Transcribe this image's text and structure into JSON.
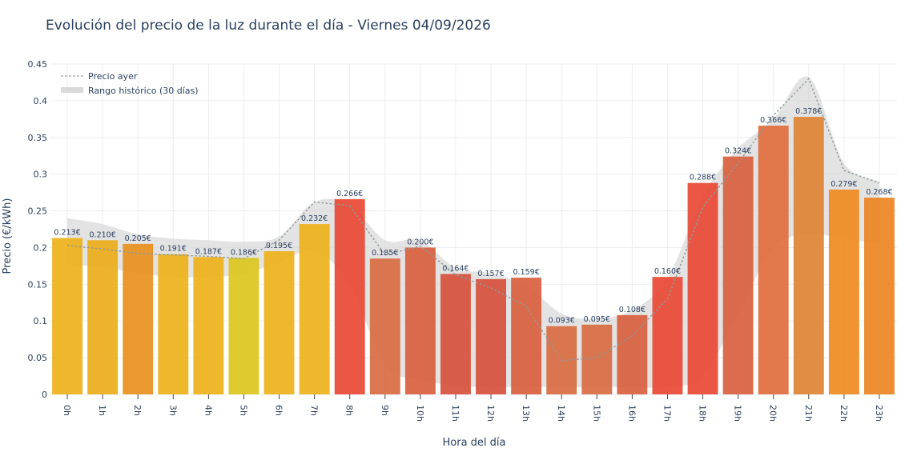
{
  "chart_data": {
    "type": "bar",
    "title": "Evolución del precio de la luz durante el día - Viernes 04/09/2026",
    "xlabel": "Hora del día",
    "ylabel": "Precio (€/kWh)",
    "ylim": [
      0,
      0.45
    ],
    "yticks": [
      "0",
      "0.05",
      "0.1",
      "0.15",
      "0.2",
      "0.25",
      "0.3",
      "0.35",
      "0.4",
      "0.45"
    ],
    "categories": [
      "0h",
      "1h",
      "2h",
      "3h",
      "4h",
      "5h",
      "6h",
      "7h",
      "8h",
      "9h",
      "10h",
      "11h",
      "12h",
      "13h",
      "14h",
      "15h",
      "16h",
      "17h",
      "18h",
      "19h",
      "20h",
      "21h",
      "22h",
      "23h"
    ],
    "values": [
      0.213,
      0.21,
      0.205,
      0.191,
      0.187,
      0.186,
      0.195,
      0.232,
      0.266,
      0.185,
      0.2,
      0.164,
      0.157,
      0.159,
      0.093,
      0.095,
      0.108,
      0.16,
      0.288,
      0.324,
      0.366,
      0.378,
      0.279,
      0.268
    ],
    "data_labels": [
      "0.213€",
      "0.210€",
      "0.205€",
      "0.191€",
      "0.187€",
      "0.186€",
      "0.195€",
      "0.232€",
      "0.266€",
      "0.185€",
      "0.200€",
      "0.164€",
      "0.157€",
      "0.159€",
      "0.093€",
      "0.095€",
      "0.108€",
      "0.160€",
      "0.288€",
      "0.324€",
      "0.366€",
      "0.378€",
      "0.279€",
      "0.268€"
    ],
    "bar_colors": [
      "#eeb11a",
      "#ecad1b",
      "#e8901e",
      "#eeb11a",
      "#eeb11a",
      "#dcc51e",
      "#eeb11a",
      "#eeb11a",
      "#e84a35",
      "#d86b42",
      "#d8603e",
      "#d6503c",
      "#d6503c",
      "#d8603e",
      "#d86b42",
      "#d86b42",
      "#d8603e",
      "#e84a35",
      "#e84a35",
      "#d8603e",
      "#e06c3c",
      "#de8434",
      "#ef8a22",
      "#ec8424"
    ],
    "series": [
      {
        "name": "Precio ayer",
        "values": [
          0.203,
          0.198,
          0.192,
          0.19,
          0.188,
          0.185,
          0.21,
          0.262,
          0.257,
          0.19,
          0.202,
          0.163,
          0.145,
          0.12,
          0.046,
          0.05,
          0.08,
          0.13,
          0.255,
          0.315,
          0.38,
          0.43,
          0.305,
          0.288
        ]
      },
      {
        "name": "Rango histórico (30 días)",
        "upper": [
          0.24,
          0.232,
          0.218,
          0.212,
          0.21,
          0.208,
          0.215,
          0.262,
          0.258,
          0.21,
          0.21,
          0.172,
          0.165,
          0.148,
          0.11,
          0.103,
          0.115,
          0.158,
          0.27,
          0.335,
          0.375,
          0.432,
          0.315,
          0.29
        ],
        "lower": [
          0.177,
          0.173,
          0.165,
          0.16,
          0.16,
          0.164,
          0.18,
          0.195,
          0.15,
          0.04,
          0.02,
          0.012,
          0.01,
          0.01,
          0.01,
          0.01,
          0.01,
          0.01,
          0.025,
          0.11,
          0.2,
          0.218,
          0.212,
          0.205
        ]
      }
    ],
    "legend_position": "top-left",
    "grid": true
  }
}
